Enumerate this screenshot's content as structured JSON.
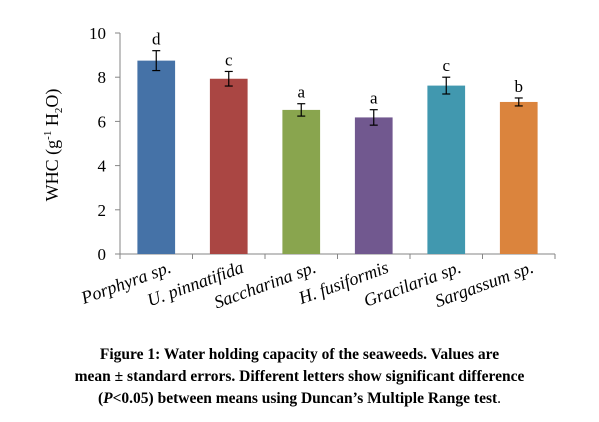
{
  "chart_data": {
    "type": "bar",
    "categories": [
      "Porphyra sp.",
      "U. pinnatifida",
      "Saccharina sp.",
      "H. fusiformis",
      "Gracilaria sp.",
      "Sargassum sp."
    ],
    "values": [
      8.75,
      7.93,
      6.52,
      6.18,
      7.62,
      6.88
    ],
    "errors": [
      0.45,
      0.33,
      0.28,
      0.35,
      0.38,
      0.18
    ],
    "significance_letters": [
      "d",
      "c",
      "a",
      "a",
      "c",
      "b"
    ],
    "colors": [
      "#4572A7",
      "#AA4643",
      "#89A54E",
      "#71588F",
      "#4198AF",
      "#DB843D"
    ],
    "ylabel": {
      "prefix": "WHC (g",
      "superscript": "-1",
      "middle": " H",
      "subscript": "2",
      "suffix": "O)"
    },
    "ylim": [
      0,
      10
    ],
    "yticks": [
      "0",
      "2",
      "4",
      "6",
      "8",
      "10"
    ],
    "grid": false,
    "legend": "none"
  },
  "caption": {
    "line1": "Figure 1: Water holding capacity of the seaweeds.  Values are",
    "line2": "mean ± standard errors. Different letters show significant difference",
    "line3_open": "(",
    "line3_p": "P",
    "line3_rest": "<0.05) between means using Duncan’s Multiple Range test",
    "line3_end": "."
  }
}
